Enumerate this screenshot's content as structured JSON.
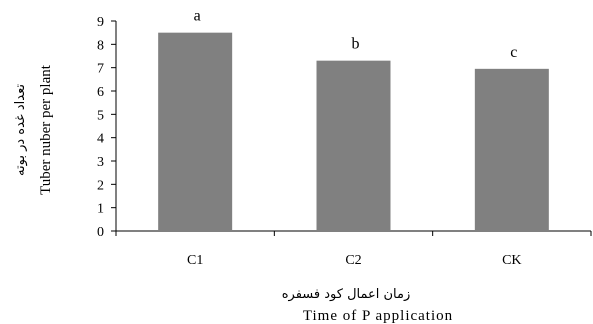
{
  "chart_data": {
    "type": "bar",
    "categories": [
      "C1",
      "C2",
      "CK"
    ],
    "values": [
      8.5,
      7.3,
      6.95
    ],
    "significance_letters": [
      "a",
      "b",
      "c"
    ],
    "ylim": [
      0,
      9
    ],
    "yticks": [
      "0",
      "1",
      "2",
      "3",
      "4",
      "5",
      "6",
      "7",
      "8",
      "9"
    ],
    "xlabel": "Time of P application",
    "xlabel_fa": "زمان اعمال کود فسفره",
    "ylabel": "Tuber nuber per plant",
    "ylabel_fa": "تعداد غده در بوته",
    "bar_color": "#808080",
    "grid": false,
    "legend": "none"
  }
}
